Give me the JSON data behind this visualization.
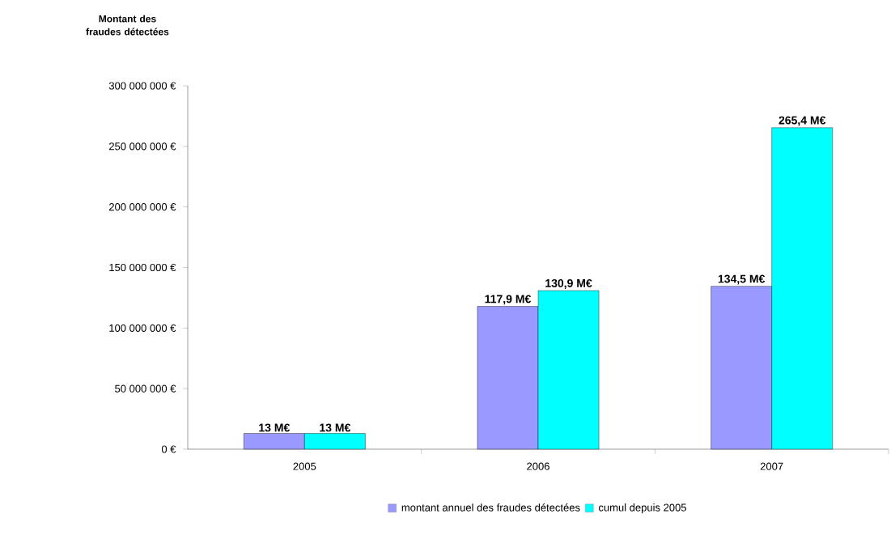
{
  "chart_data": {
    "type": "bar",
    "ylabel": "Montant des fraudes détectées",
    "categories": [
      "2005",
      "2006",
      "2007"
    ],
    "series": [
      {
        "name": "montant annuel des fraudes détectées",
        "color": "#9999ff",
        "values": [
          13000000,
          117900000,
          134500000
        ],
        "value_labels": [
          "13 M€",
          "117,9 M€",
          "134,5 M€"
        ]
      },
      {
        "name": "cumul depuis 2005",
        "color": "#00ffff",
        "values": [
          13000000,
          130900000,
          265400000
        ],
        "value_labels": [
          "13 M€",
          "130,9 M€",
          "265,4 M€"
        ]
      }
    ],
    "ylim": [
      0,
      300000000
    ],
    "yticks": [
      {
        "value": 0,
        "label": "0 €"
      },
      {
        "value": 50000000,
        "label": "50 000 000 €"
      },
      {
        "value": 100000000,
        "label": "100 000 000 €"
      },
      {
        "value": 150000000,
        "label": "150 000 000 €"
      },
      {
        "value": 200000000,
        "label": "200 000 000 €"
      },
      {
        "value": 250000000,
        "label": "250 000 000 €"
      },
      {
        "value": 300000000,
        "label": "300 000 000 €"
      }
    ],
    "grid": false,
    "legend": "bottom"
  }
}
